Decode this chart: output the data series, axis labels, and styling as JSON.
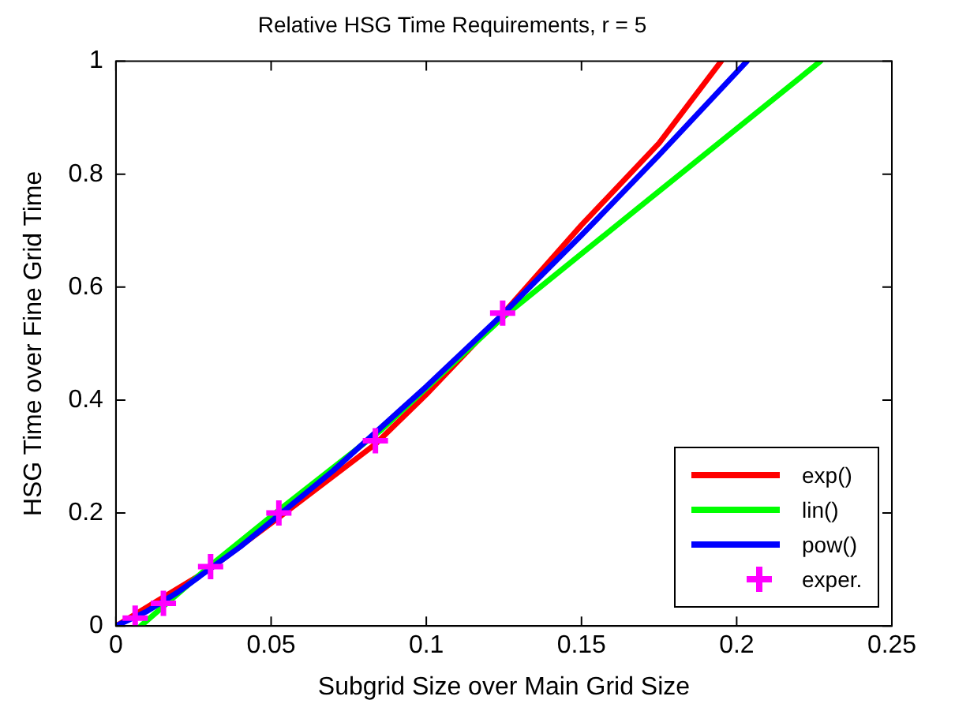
{
  "chart_data": {
    "type": "line",
    "title": "Relative HSG Time Requirements, r = 5",
    "xlabel": "Subgrid Size over Main Grid Size",
    "ylabel": "HSG Time over Fine Grid Time",
    "xlim": [
      0,
      0.25
    ],
    "xticks": [
      0,
      0.05,
      0.1,
      0.15,
      0.2,
      0.25
    ],
    "ylim": [
      0,
      1
    ],
    "yticks": [
      0,
      0.2,
      0.4,
      0.6,
      0.8,
      1
    ],
    "grid": false,
    "legend": "bottom right",
    "series": [
      {
        "name": "exp()",
        "color": "#ff0000",
        "marker": "none",
        "x": [
          0,
          0.03,
          0.0525,
          0.0836,
          0.1,
          0.1246,
          0.15,
          0.175,
          0.195
        ],
        "values": [
          0,
          0.1,
          0.192,
          0.322,
          0.41,
          0.552,
          0.71,
          0.855,
          1
        ]
      },
      {
        "name": "lin()",
        "color": "#00ff00",
        "marker": "none",
        "x": [
          0.008,
          0.03,
          0.0525,
          0.085,
          0.125,
          0.175,
          0.227
        ],
        "values": [
          0,
          0.105,
          0.205,
          0.345,
          0.548,
          0.77,
          1
        ]
      },
      {
        "name": "pow()",
        "color": "#0000ff",
        "marker": "none",
        "x": [
          0,
          0.01,
          0.02,
          0.04,
          0.07,
          0.1,
          0.1246,
          0.15,
          0.175,
          0.2033
        ],
        "values": [
          0,
          0.026,
          0.06,
          0.14,
          0.275,
          0.424,
          0.552,
          0.692,
          0.834,
          1
        ]
      },
      {
        "name": "exper.",
        "color": "#ff00ff",
        "type": "scatter",
        "marker": "cross",
        "x": [
          0.0062,
          0.0153,
          0.0305,
          0.0525,
          0.0836,
          0.1246
        ],
        "values": [
          0.014,
          0.04,
          0.105,
          0.2,
          0.328,
          0.554
        ]
      }
    ]
  }
}
